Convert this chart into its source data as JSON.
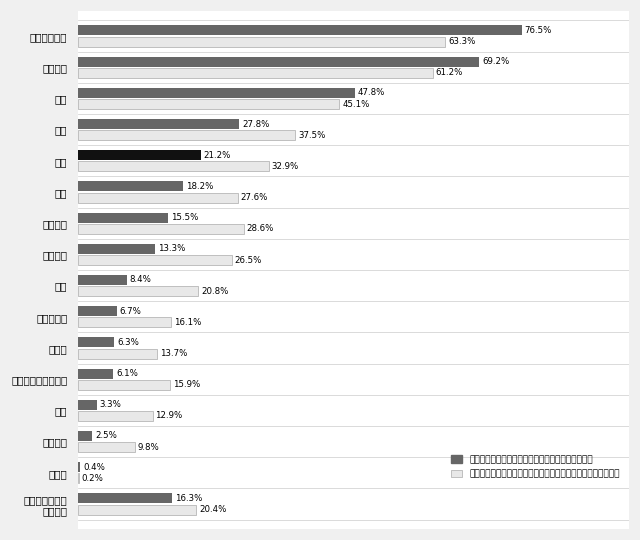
{
  "categories": [
    "ペットボトル",
    "缶・ビン",
    "紙類",
    "書籍",
    "表類",
    "家電",
    "パソコン",
    "携帯電話",
    "家具",
    "車・バイク",
    "生べ物",
    "貴金属・ジュエリー",
    "食器",
    "調理器具",
    "その他",
    "実践していない\n特になし"
  ],
  "current": [
    76.5,
    69.2,
    47.8,
    27.8,
    21.2,
    18.2,
    15.5,
    13.3,
    8.4,
    6.7,
    6.3,
    6.1,
    3.3,
    2.5,
    0.4,
    16.3
  ],
  "future": [
    63.3,
    61.2,
    45.1,
    37.5,
    32.9,
    27.6,
    28.6,
    26.5,
    20.8,
    16.1,
    13.7,
    15.9,
    12.9,
    9.8,
    0.2,
    20.4
  ],
  "current_color": "#666666",
  "future_color": "#e8e8e8",
  "special_color": "#111111",
  "special_index": 4,
  "legend_current": "現在、リサイクルを実践しているもの（複数回答）",
  "legend_future": "今後、リサイクルを実践していきたいと思うもの（複数回答）",
  "bar_height": 0.32,
  "xlim": [
    0,
    95
  ],
  "figsize": [
    6.4,
    5.4
  ],
  "dpi": 100,
  "background_color": "#f0f0f0",
  "plot_bg_color": "#ffffff"
}
